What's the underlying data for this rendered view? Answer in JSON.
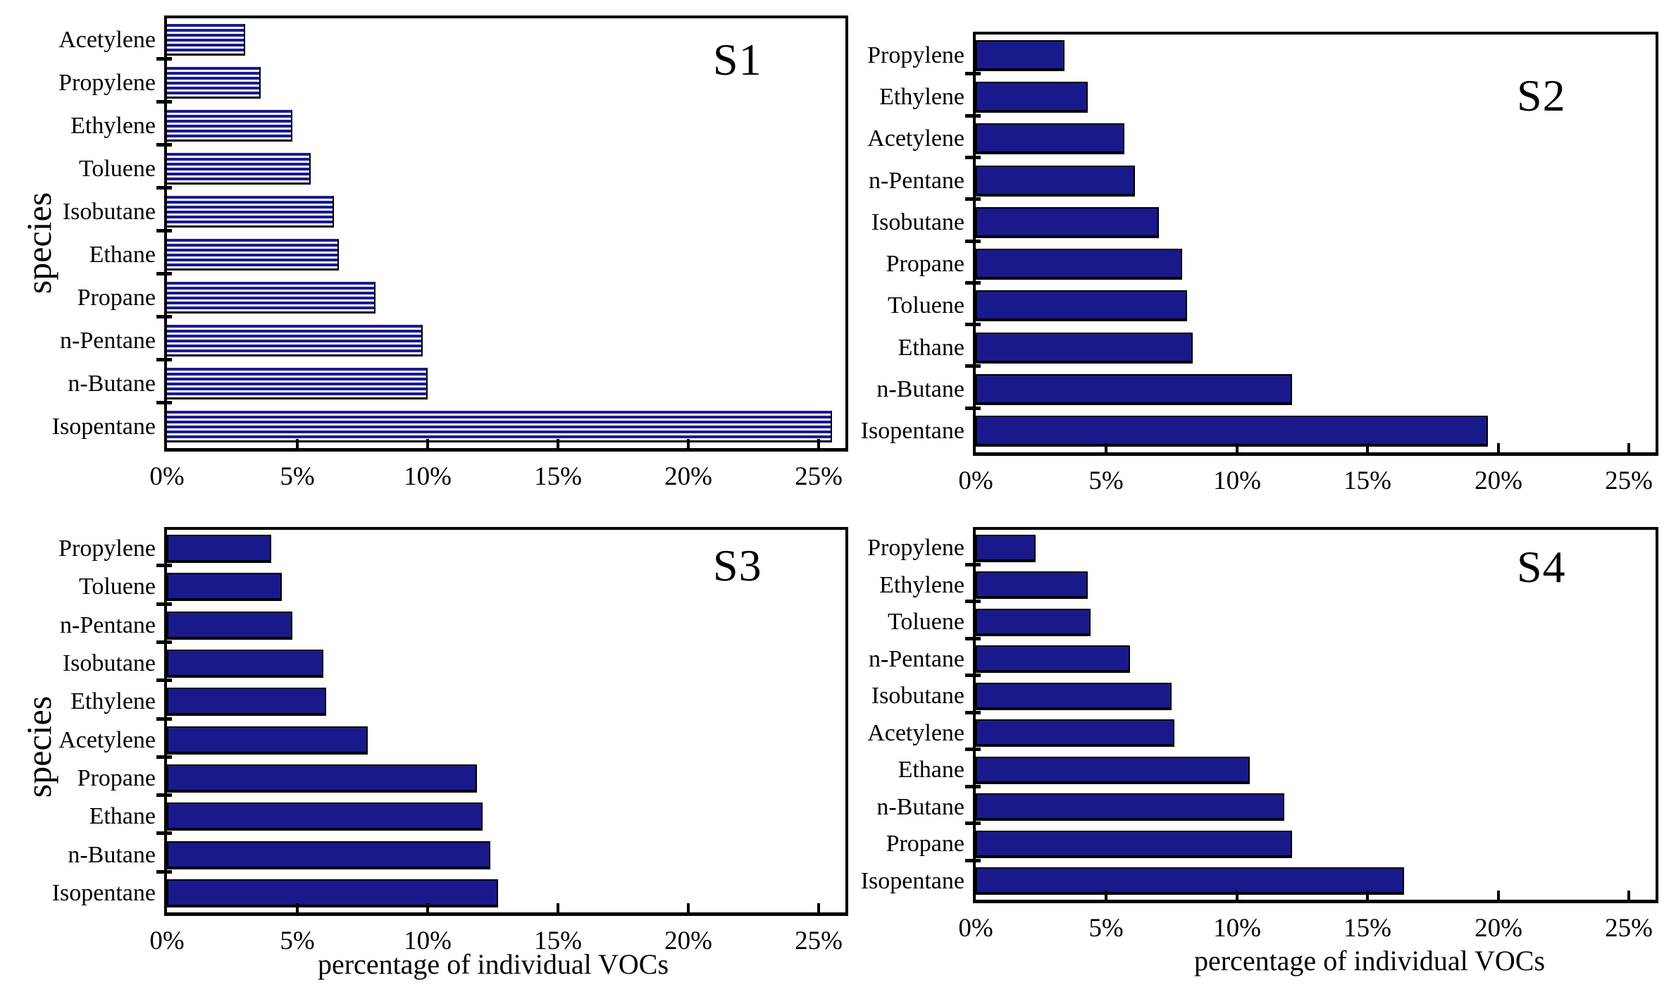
{
  "chart_data": {
    "type": "bar",
    "orientation": "horizontal",
    "title": "",
    "xlabel": "percentage of individual VOCs",
    "ylabel": "species",
    "xlim": [
      0,
      26
    ],
    "x_tick_values": [
      0,
      5,
      10,
      15,
      20,
      25
    ],
    "x_tick_labels": [
      "0%",
      "5%",
      "10%",
      "15%",
      "20%",
      "25%"
    ],
    "grid": false,
    "legend": "none",
    "bar_color_solid": "#19198c",
    "bar_stripe_color": "#1b1b8f",
    "frame_color": "#000000",
    "panels": [
      {
        "title": "S1",
        "bar_style": "striped",
        "categories": [
          "Acetylene",
          "Propylene",
          "Ethylene",
          "Toluene",
          "Isobutane",
          "Ethane",
          "Propane",
          "n-Pentane",
          "n-Butane",
          "Isopentane"
        ],
        "values": [
          3.0,
          3.6,
          4.8,
          5.5,
          6.4,
          6.6,
          8.0,
          9.8,
          10.0,
          25.5
        ]
      },
      {
        "title": "S2",
        "bar_style": "solid",
        "categories": [
          "Propylene",
          "Ethylene",
          "Acetylene",
          "n-Pentane",
          "Isobutane",
          "Propane",
          "Toluene",
          "Ethane",
          "n-Butane",
          "Isopentane"
        ],
        "values": [
          3.4,
          4.3,
          5.7,
          6.1,
          7.0,
          7.9,
          8.1,
          8.3,
          12.1,
          19.6
        ]
      },
      {
        "title": "S3",
        "bar_style": "solid",
        "categories": [
          "Propylene",
          "Toluene",
          "n-Pentane",
          "Isobutane",
          "Ethylene",
          "Acetylene",
          "Propane",
          "Ethane",
          "n-Butane",
          "Isopentane"
        ],
        "values": [
          4.0,
          4.4,
          4.8,
          6.0,
          6.1,
          7.7,
          11.9,
          12.1,
          12.4,
          12.7
        ]
      },
      {
        "title": "S4",
        "bar_style": "solid",
        "categories": [
          "Propylene",
          "Ethylene",
          "Toluene",
          "n-Pentane",
          "Isobutane",
          "Acetylene",
          "Ethane",
          "n-Butane",
          "Propane",
          "Isopentane"
        ],
        "values": [
          2.3,
          4.3,
          4.4,
          5.9,
          7.5,
          7.6,
          10.5,
          11.8,
          12.1,
          16.4
        ]
      }
    ]
  }
}
